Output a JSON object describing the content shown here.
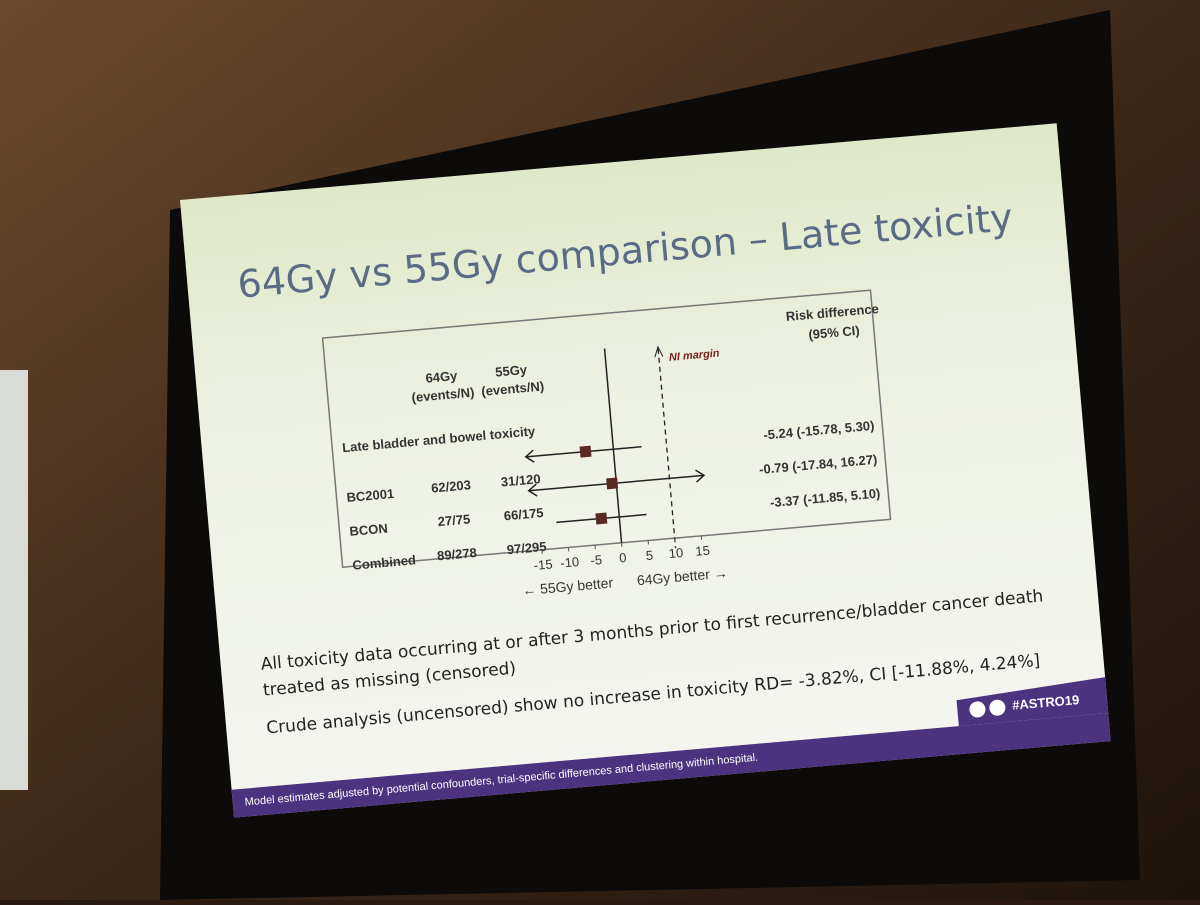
{
  "title": "64Gy vs 55Gy comparison – Late toxicity",
  "chart_data": {
    "type": "forest",
    "col_64": [
      "64Gy",
      "(events/N)"
    ],
    "col_55": [
      "55Gy",
      "(events/N)"
    ],
    "col_rd": [
      "Risk difference",
      "(95% CI)"
    ],
    "group_label": "Late bladder and bowel toxicity",
    "categories": [
      "BC2001",
      "BCON",
      "Combined"
    ],
    "arm_64": [
      "62/203",
      "27/75",
      "89/278"
    ],
    "arm_55": [
      "31/120",
      "66/175",
      "97/295"
    ],
    "values": [
      -5.24,
      -0.79,
      -3.37
    ],
    "ci_low": [
      -15.78,
      -17.84,
      -11.85
    ],
    "ci_high": [
      5.3,
      16.27,
      5.1
    ],
    "value_labels": [
      "-5.24 (-15.78,  5.30)",
      "-0.79 (-17.84, 16.27)",
      "-3.37 (-11.85,  5.10)"
    ],
    "xlim": [
      -15,
      15
    ],
    "xticks": [
      -15,
      -10,
      -5,
      0,
      5,
      10,
      15
    ],
    "ni_margin": 10,
    "ni_label": "NI margin",
    "x_label_left": "←  55Gy better",
    "x_label_right": "64Gy better  →",
    "marker_color": "#5a2a22"
  },
  "bullets": [
    [
      "All toxicity data occurring at or after 3 months prior to first recurrence/bladder cancer death",
      "treated as missing (censored)"
    ],
    [
      "Crude analysis (uncensored) show no increase in toxicity RD= -3.82%, CI [-11.88%, 4.24%]"
    ]
  ],
  "badge": "#ASTRO19",
  "footer": "Model estimates adjusted by potential confounders, trial-specific differences and clustering within hospital."
}
